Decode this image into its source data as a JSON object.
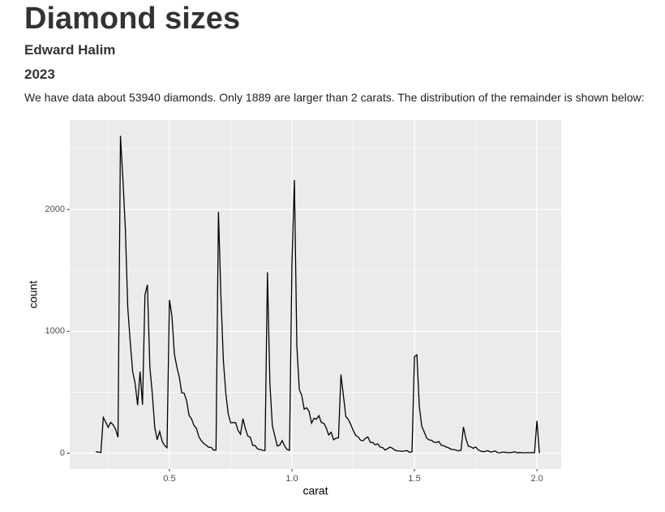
{
  "header": {
    "title": "Diamond sizes",
    "author": "Edward Halim",
    "date": "2023"
  },
  "paragraph": "We have data about 53940 diamonds. Only 1889 are larger than 2 carats. The distribution of the remainder is shown below:",
  "chart_data": {
    "type": "line",
    "x_label": "carat",
    "y_label": "count",
    "color": "#000000",
    "grid": true,
    "xlim": [
      0.093,
      2.099
    ],
    "ylim": [
      -130,
      2734
    ],
    "xticks": [
      0.5,
      {
        "value": 1.0,
        "label": "1.0"
      },
      1.5,
      {
        "value": 2.0,
        "label": "2.0"
      }
    ],
    "yticks": [
      0,
      1000,
      2000
    ],
    "x_minor_grid": [
      0.25,
      0.75,
      1.25,
      1.75
    ],
    "y_minor_grid": [
      500,
      1500,
      2500
    ],
    "x": [
      0.2,
      0.21,
      0.22,
      0.23,
      0.24,
      0.25,
      0.26,
      0.27,
      0.28,
      0.29,
      0.3,
      0.31,
      0.32,
      0.33,
      0.34,
      0.35,
      0.36,
      0.37,
      0.38,
      0.39,
      0.4,
      0.41,
      0.42,
      0.43,
      0.44,
      0.45,
      0.46,
      0.47,
      0.48,
      0.49,
      0.5,
      0.51,
      0.52,
      0.53,
      0.54,
      0.55,
      0.56,
      0.57,
      0.58,
      0.59,
      0.6,
      0.61,
      0.62,
      0.63,
      0.64,
      0.65,
      0.66,
      0.67,
      0.68,
      0.69,
      0.7,
      0.71,
      0.72,
      0.73,
      0.74,
      0.75,
      0.76,
      0.77,
      0.78,
      0.79,
      0.8,
      0.81,
      0.82,
      0.83,
      0.84,
      0.85,
      0.86,
      0.87,
      0.88,
      0.89,
      0.9,
      0.91,
      0.92,
      0.93,
      0.94,
      0.95,
      0.96,
      0.97,
      0.98,
      0.99,
      1.0,
      1.01,
      1.02,
      1.03,
      1.04,
      1.05,
      1.06,
      1.07,
      1.08,
      1.09,
      1.1,
      1.11,
      1.12,
      1.13,
      1.14,
      1.15,
      1.16,
      1.17,
      1.18,
      1.19,
      1.2,
      1.21,
      1.22,
      1.23,
      1.24,
      1.25,
      1.26,
      1.27,
      1.28,
      1.29,
      1.3,
      1.31,
      1.32,
      1.33,
      1.34,
      1.35,
      1.36,
      1.37,
      1.38,
      1.39,
      1.4,
      1.41,
      1.42,
      1.43,
      1.44,
      1.45,
      1.46,
      1.47,
      1.48,
      1.49,
      1.5,
      1.51,
      1.52,
      1.53,
      1.54,
      1.55,
      1.56,
      1.57,
      1.58,
      1.59,
      1.6,
      1.61,
      1.62,
      1.63,
      1.64,
      1.65,
      1.66,
      1.67,
      1.68,
      1.69,
      1.7,
      1.71,
      1.72,
      1.73,
      1.74,
      1.75,
      1.76,
      1.77,
      1.78,
      1.79,
      1.8,
      1.81,
      1.82,
      1.83,
      1.84,
      1.85,
      1.86,
      1.87,
      1.88,
      1.89,
      1.9,
      1.91,
      1.92,
      1.93,
      1.94,
      1.95,
      1.96,
      1.97,
      1.98,
      1.99,
      2.0,
      2.01
    ],
    "values": [
      12,
      9,
      5,
      293,
      254,
      212,
      253,
      233,
      198,
      130,
      2604,
      2249,
      1840,
      1189,
      910,
      667,
      572,
      394,
      670,
      398,
      1299,
      1382,
      706,
      488,
      212,
      110,
      178,
      99,
      63,
      45,
      1258,
      1127,
      817,
      709,
      625,
      496,
      492,
      430,
      310,
      282,
      228,
      204,
      135,
      102,
      80,
      65,
      48,
      48,
      25,
      26,
      1981,
      1294,
      764,
      492,
      322,
      249,
      251,
      251,
      187,
      155,
      284,
      200,
      140,
      131,
      64,
      62,
      34,
      31,
      23,
      21,
      1485,
      570,
      226,
      142,
      59,
      65,
      103,
      59,
      31,
      23,
      1558,
      2242,
      883,
      523,
      475,
      361,
      373,
      342,
      246,
      287,
      278,
      308,
      251,
      246,
      207,
      149,
      172,
      110,
      123,
      126,
      645,
      473,
      300,
      277,
      235,
      187,
      146,
      134,
      106,
      101,
      122,
      133,
      89,
      87,
      68,
      77,
      50,
      46,
      26,
      36,
      50,
      40,
      25,
      19,
      18,
      15,
      18,
      21,
      7,
      11,
      793,
      807,
      381,
      220,
      174,
      124,
      109,
      106,
      89,
      89,
      95,
      64,
      61,
      50,
      43,
      32,
      30,
      25,
      19,
      24,
      215,
      119,
      57,
      52,
      40,
      50,
      28,
      17,
      12,
      15,
      21,
      9,
      13,
      18,
      4,
      3,
      9,
      7,
      4,
      4,
      7,
      12,
      2,
      6,
      3,
      3,
      4,
      4,
      5,
      3,
      265,
      0
    ]
  }
}
